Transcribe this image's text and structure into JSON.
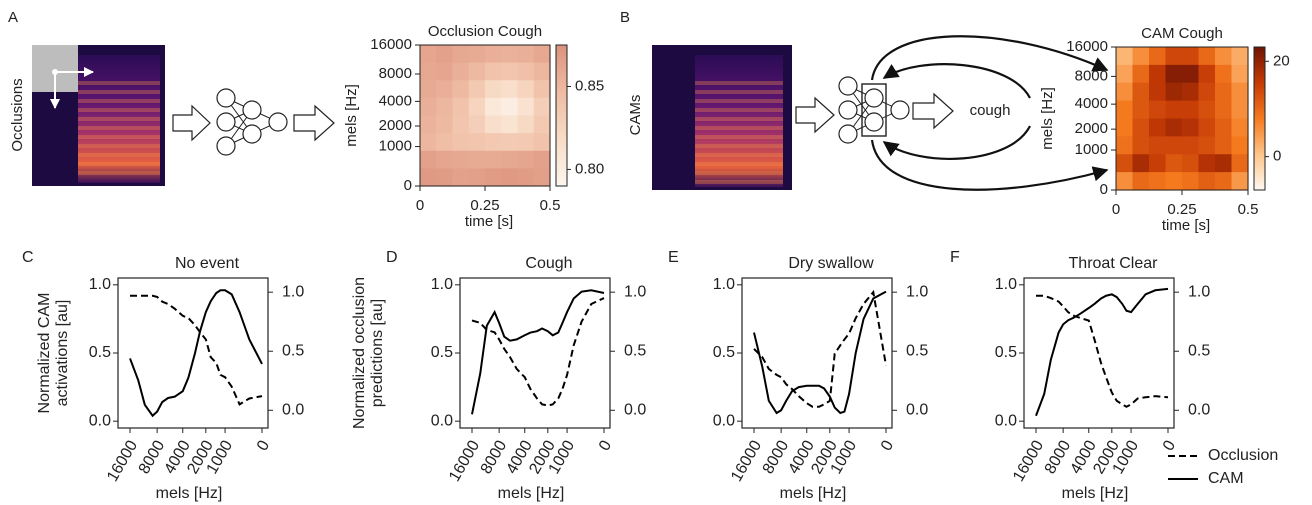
{
  "figure": {
    "panel_labels": [
      "A",
      "B",
      "C",
      "D",
      "E",
      "F"
    ],
    "occlusions": "Occlusions",
    "cams": "CAMs",
    "prediction": "cough"
  },
  "chart_data": [
    {
      "type": "heatmap",
      "title": "Occlusion Cough",
      "xlabel": "time [s]",
      "ylabel": "mels [Hz]",
      "xlim": [
        0,
        0.5
      ],
      "xticks": [
        0,
        0.25,
        0.5
      ],
      "ylim": [
        0,
        16000
      ],
      "yscale": "mel",
      "yticks": [
        0,
        1000,
        2000,
        4000,
        8000,
        16000
      ],
      "z": [
        [
          0.862,
          0.865,
          0.86,
          0.858,
          0.855,
          0.853,
          0.855,
          0.86
        ],
        [
          0.86,
          0.862,
          0.855,
          0.848,
          0.84,
          0.838,
          0.842,
          0.85
        ],
        [
          0.858,
          0.855,
          0.848,
          0.835,
          0.82,
          0.815,
          0.825,
          0.84
        ],
        [
          0.855,
          0.85,
          0.84,
          0.825,
          0.805,
          0.8,
          0.812,
          0.83
        ],
        [
          0.852,
          0.848,
          0.838,
          0.83,
          0.815,
          0.81,
          0.82,
          0.835
        ],
        [
          0.85,
          0.845,
          0.84,
          0.838,
          0.835,
          0.833,
          0.835,
          0.84
        ],
        [
          0.865,
          0.862,
          0.86,
          0.858,
          0.858,
          0.86,
          0.862,
          0.865
        ],
        [
          0.87,
          0.868,
          0.865,
          0.866,
          0.868,
          0.87,
          0.868,
          0.866
        ]
      ],
      "zlim": [
        0.79,
        0.875
      ],
      "zticks": [
        {
          "value": 0.8,
          "label": "0.80"
        },
        0.85
      ],
      "colormap": [
        "#fdf6ef",
        "#f8dcc6",
        "#efbba3",
        "#dc927d"
      ]
    },
    {
      "type": "heatmap",
      "title": "CAM Cough",
      "xlabel": "time [s]",
      "ylabel": "mels [Hz]",
      "xlim": [
        0,
        0.5
      ],
      "xticks": [
        0,
        0.25,
        0.5
      ],
      "ylim": [
        0,
        16000
      ],
      "yscale": "mel",
      "yticks": [
        0,
        1000,
        2000,
        4000,
        8000,
        16000
      ],
      "z": [
        [
          2,
          6,
          10,
          14,
          14,
          10,
          6,
          3
        ],
        [
          4,
          10,
          16,
          21,
          21,
          15,
          9,
          4
        ],
        [
          6,
          12,
          16,
          19,
          18,
          14,
          10,
          6
        ],
        [
          8,
          12,
          14,
          15,
          15,
          13,
          10,
          6
        ],
        [
          8,
          13,
          16,
          18,
          17,
          14,
          11,
          7
        ],
        [
          9,
          13,
          14,
          14,
          14,
          13,
          11,
          8
        ],
        [
          13,
          18,
          15,
          12,
          13,
          17,
          18,
          10
        ],
        [
          6,
          10,
          9,
          8,
          9,
          11,
          10,
          5
        ]
      ],
      "zlim": [
        -7,
        23
      ],
      "zticks": [
        0,
        20
      ],
      "colormap": [
        "#fff8f0",
        "#fdc58a",
        "#f57a1e",
        "#c53a05",
        "#6e1403"
      ]
    },
    {
      "type": "line",
      "title": "No event",
      "xlabel": "mels [Hz]",
      "ylabel": [
        "Normalized CAM",
        "activations [au]"
      ],
      "y2label": [
        "Normalized occlusion",
        "predictions [au]"
      ],
      "x": [
        16000,
        13000,
        11000,
        9000,
        8000,
        7000,
        6000,
        5000,
        4000,
        3400,
        2800,
        2400,
        2000,
        1700,
        1400,
        1200,
        1000,
        750,
        500,
        250,
        0
      ],
      "xlim": [
        16000,
        0
      ],
      "xscale": "mel",
      "xticks": [
        16000,
        8000,
        4000,
        2000,
        1000,
        0
      ],
      "ylim": [
        -0.05,
        1.05
      ],
      "yticks": [
        {
          "value": 0,
          "label": "0.0"
        },
        0.5,
        {
          "value": 1,
          "label": "1.0"
        }
      ],
      "y2lim": [
        -0.15,
        1.12
      ],
      "y2ticks": [
        {
          "value": 0,
          "label": "0.0"
        },
        0.5,
        {
          "value": 1,
          "label": "1.0"
        }
      ],
      "series": [
        {
          "color": "#000000",
          "linestyle": "dashed",
          "axis": "y2",
          "values": [
            0.97,
            0.97,
            0.97,
            0.97,
            0.96,
            0.92,
            0.9,
            0.86,
            0.8,
            0.78,
            0.72,
            0.66,
            0.6,
            0.45,
            0.4,
            0.3,
            0.28,
            0.2,
            0.05,
            0.1,
            0.12
          ]
        },
        {
          "color": "#000000",
          "linestyle": "solid",
          "values": [
            0.46,
            0.3,
            0.12,
            0.04,
            0.07,
            0.14,
            0.17,
            0.18,
            0.22,
            0.32,
            0.5,
            0.66,
            0.8,
            0.88,
            0.94,
            0.96,
            0.96,
            0.93,
            0.8,
            0.6,
            0.42
          ]
        }
      ]
    },
    {
      "type": "line",
      "title": "Cough",
      "xlabel": "mels [Hz]",
      "x": [
        16000,
        13000,
        11000,
        9000,
        8000,
        7000,
        6000,
        5000,
        4000,
        3400,
        2800,
        2400,
        2000,
        1700,
        1400,
        1200,
        1000,
        750,
        500,
        250,
        0
      ],
      "xlim": [
        16000,
        0
      ],
      "xscale": "mel",
      "xticks": [
        16000,
        8000,
        4000,
        2000,
        1000,
        0
      ],
      "ylim": [
        -0.05,
        1.05
      ],
      "yticks": [
        {
          "value": 0,
          "label": "0.0"
        },
        0.5,
        {
          "value": 1,
          "label": "1.0"
        }
      ],
      "y2lim": [
        -0.15,
        1.12
      ],
      "y2ticks": [
        {
          "value": 0,
          "label": "0.0"
        },
        0.5,
        {
          "value": 1,
          "label": "1.0"
        }
      ],
      "series": [
        {
          "color": "#000000",
          "linestyle": "dashed",
          "axis": "y2",
          "values": [
            0.76,
            0.74,
            0.68,
            0.66,
            0.6,
            0.52,
            0.45,
            0.35,
            0.28,
            0.18,
            0.1,
            0.05,
            0.04,
            0.05,
            0.1,
            0.18,
            0.3,
            0.55,
            0.75,
            0.9,
            0.95
          ]
        },
        {
          "color": "#000000",
          "linestyle": "solid",
          "values": [
            0.05,
            0.35,
            0.7,
            0.8,
            0.72,
            0.62,
            0.59,
            0.6,
            0.63,
            0.65,
            0.66,
            0.68,
            0.66,
            0.63,
            0.65,
            0.72,
            0.8,
            0.9,
            0.95,
            0.96,
            0.94
          ]
        }
      ]
    },
    {
      "type": "line",
      "title": "Dry swallow",
      "xlabel": "mels [Hz]",
      "x": [
        16000,
        13000,
        11000,
        9000,
        8000,
        7000,
        6000,
        5000,
        4000,
        3400,
        2800,
        2400,
        2000,
        1700,
        1400,
        1200,
        1000,
        750,
        500,
        250,
        0
      ],
      "xlim": [
        16000,
        0
      ],
      "xscale": "mel",
      "xticks": [
        16000,
        8000,
        4000,
        2000,
        1000,
        0
      ],
      "ylim": [
        -0.05,
        1.05
      ],
      "yticks": [
        {
          "value": 0,
          "label": "0.0"
        },
        0.5,
        {
          "value": 1,
          "label": "1.0"
        }
      ],
      "y2lim": [
        -0.15,
        1.12
      ],
      "y2ticks": [
        {
          "value": 0,
          "label": "0.0"
        },
        0.5,
        {
          "value": 1,
          "label": "1.0"
        }
      ],
      "series": [
        {
          "color": "#000000",
          "linestyle": "dashed",
          "axis": "y2",
          "values": [
            0.52,
            0.45,
            0.35,
            0.3,
            0.28,
            0.22,
            0.18,
            0.12,
            0.06,
            0.03,
            0.03,
            0.05,
            0.08,
            0.48,
            0.55,
            0.6,
            0.65,
            0.78,
            0.9,
            1.0,
            0.38
          ]
        },
        {
          "color": "#000000",
          "linestyle": "solid",
          "values": [
            0.65,
            0.4,
            0.15,
            0.06,
            0.08,
            0.15,
            0.22,
            0.25,
            0.26,
            0.26,
            0.26,
            0.24,
            0.18,
            0.1,
            0.06,
            0.07,
            0.2,
            0.5,
            0.75,
            0.9,
            0.95
          ]
        }
      ]
    },
    {
      "type": "line",
      "title": "Throat Clear",
      "xlabel": "mels [Hz]",
      "x": [
        16000,
        13000,
        11000,
        9000,
        8000,
        7000,
        6000,
        5000,
        4000,
        3400,
        2800,
        2400,
        2000,
        1700,
        1400,
        1200,
        1000,
        750,
        500,
        250,
        0
      ],
      "xlim": [
        16000,
        0
      ],
      "xscale": "mel",
      "xticks": [
        16000,
        8000,
        4000,
        2000,
        1000,
        0
      ],
      "ylim": [
        -0.05,
        1.05
      ],
      "yticks": [
        {
          "value": 0,
          "label": "0.0"
        },
        0.5,
        {
          "value": 1,
          "label": "1.0"
        }
      ],
      "y2lim": [
        -0.15,
        1.12
      ],
      "y2ticks": [
        {
          "value": 0,
          "label": "0.0"
        },
        0.5,
        {
          "value": 1,
          "label": "1.0"
        }
      ],
      "legend": "outside-right",
      "series": [
        {
          "name": "Occlusion",
          "color": "#000000",
          "linestyle": "dashed",
          "axis": "y2",
          "values": [
            0.97,
            0.97,
            0.95,
            0.92,
            0.88,
            0.83,
            0.8,
            0.78,
            0.76,
            0.6,
            0.4,
            0.28,
            0.15,
            0.08,
            0.05,
            0.03,
            0.05,
            0.1,
            0.11,
            0.12,
            0.11
          ]
        },
        {
          "name": "CAM",
          "color": "#000000",
          "linestyle": "solid",
          "values": [
            0.04,
            0.2,
            0.45,
            0.65,
            0.71,
            0.74,
            0.76,
            0.79,
            0.83,
            0.86,
            0.9,
            0.92,
            0.93,
            0.91,
            0.86,
            0.81,
            0.8,
            0.86,
            0.93,
            0.96,
            0.97
          ]
        }
      ]
    }
  ]
}
